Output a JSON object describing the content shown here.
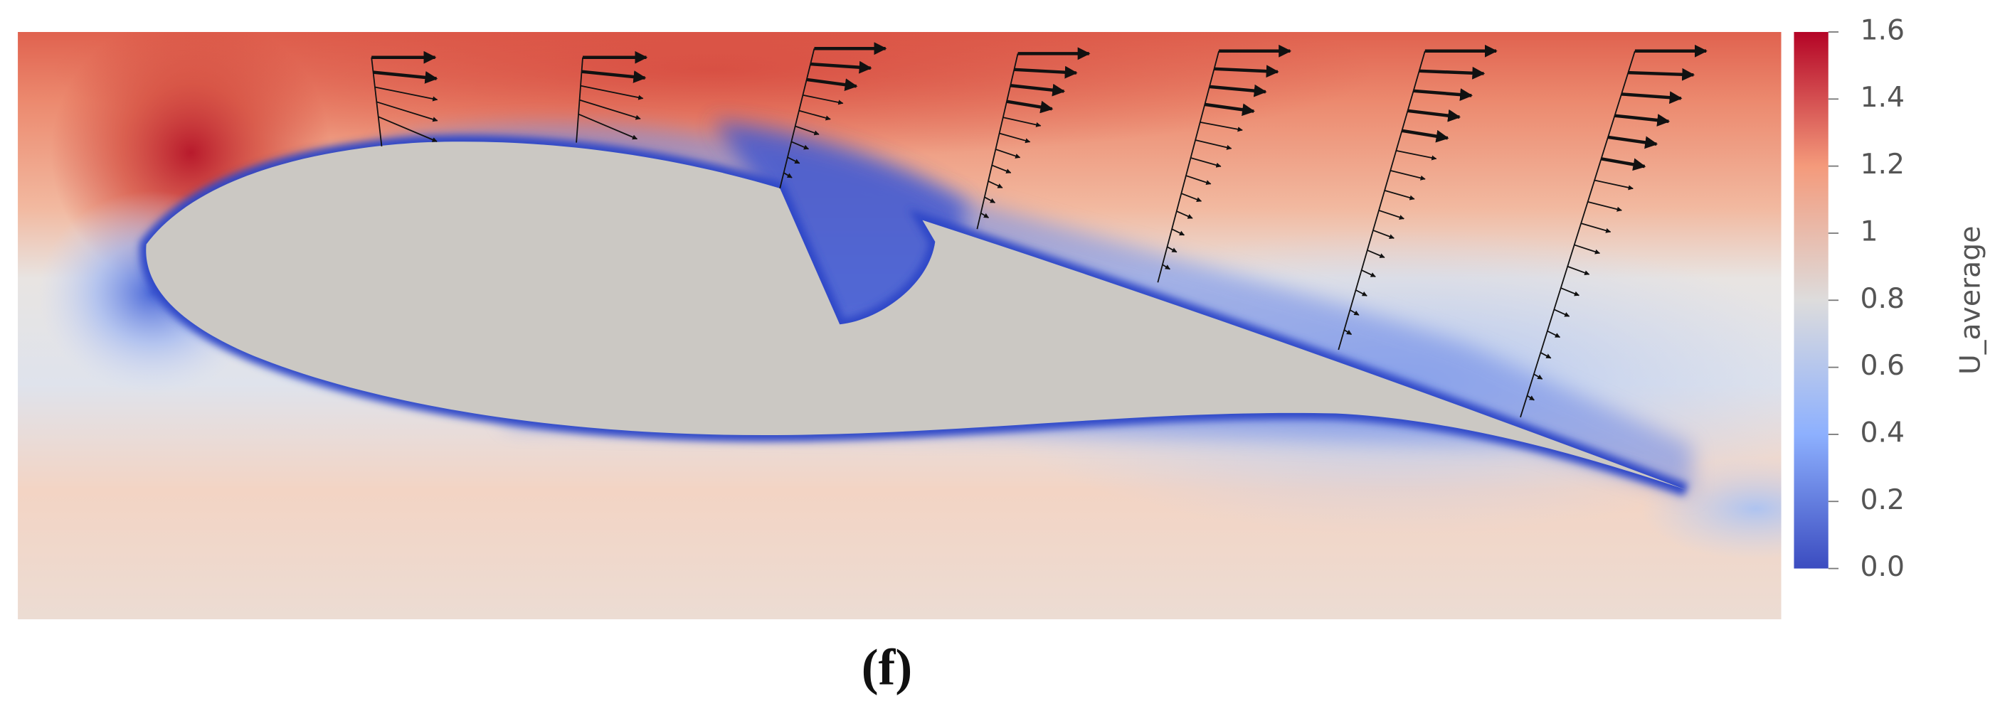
{
  "colorbar": {
    "label": "U_average",
    "lim": [
      0,
      1.6
    ],
    "ticks": [
      {
        "value": 0,
        "label": "0.0"
      },
      0.2,
      0.4,
      0.6,
      0.8,
      1,
      1.2,
      1.4,
      1.6
    ]
  },
  "caption": "(f)"
}
